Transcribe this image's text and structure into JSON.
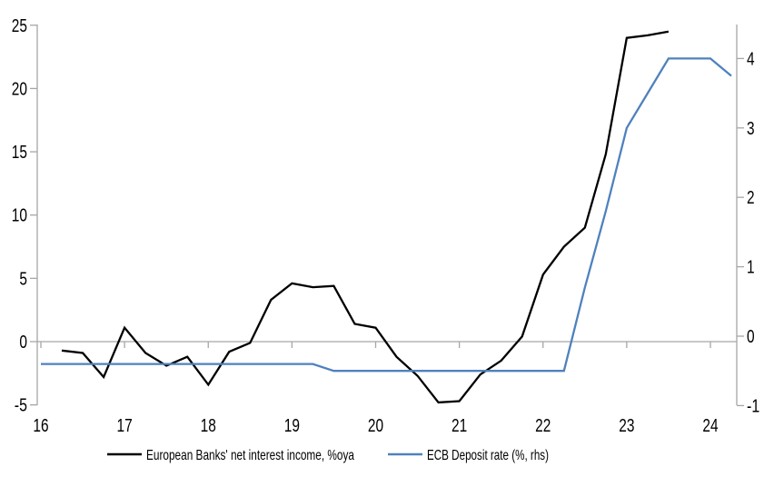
{
  "chart_data": {
    "type": "line",
    "title": "",
    "legend_position": "bottom",
    "grid": false,
    "x_axis": {
      "ticks": [
        16,
        17,
        18,
        19,
        20,
        21,
        22,
        23,
        24
      ],
      "labels": [
        "16",
        "17",
        "18",
        "19",
        "20",
        "21",
        "22",
        "23",
        "24"
      ],
      "range": [
        16,
        24.32
      ]
    },
    "left_axis": {
      "ticks": [
        -5,
        0,
        5,
        10,
        15,
        20,
        25
      ],
      "labels": [
        "-5",
        "0",
        "5",
        "10",
        "15",
        "20",
        "25"
      ],
      "range": [
        -5,
        25
      ],
      "zero_line": true
    },
    "right_axis": {
      "ticks": [
        -1,
        0,
        1,
        2,
        3,
        4
      ],
      "labels": [
        "-1",
        "0",
        "1",
        "2",
        "3",
        "4"
      ],
      "range": [
        -1,
        4.48
      ]
    },
    "series": [
      {
        "name": "European Banks' net interest income, %oya",
        "axis": "left",
        "color": "#000000",
        "x": [
          16.25,
          16.5,
          16.75,
          17.0,
          17.25,
          17.5,
          17.75,
          18.0,
          18.25,
          18.5,
          18.75,
          19.0,
          19.25,
          19.5,
          19.75,
          20.0,
          20.25,
          20.5,
          20.75,
          21.0,
          21.25,
          21.5,
          21.75,
          22.0,
          22.25,
          22.5,
          22.75,
          23.0,
          23.25,
          23.5
        ],
        "values": [
          -0.7,
          -0.9,
          -2.8,
          1.1,
          -0.9,
          -1.9,
          -1.2,
          -3.4,
          -0.8,
          -0.1,
          3.3,
          4.6,
          4.3,
          4.4,
          1.4,
          1.1,
          -1.2,
          -2.7,
          -4.8,
          -4.7,
          -2.6,
          -1.5,
          0.4,
          5.3,
          7.5,
          9.0,
          14.8,
          24.0,
          24.2,
          24.5
        ]
      },
      {
        "name": "ECB Deposit rate (%, rhs)",
        "axis": "right",
        "color": "#4f81bd",
        "x": [
          16.0,
          16.25,
          16.5,
          16.75,
          17.0,
          17.25,
          17.5,
          17.75,
          18.0,
          18.25,
          18.5,
          18.75,
          19.0,
          19.25,
          19.5,
          19.75,
          20.0,
          20.25,
          20.5,
          20.75,
          21.0,
          21.25,
          21.5,
          21.75,
          22.0,
          22.25,
          22.5,
          22.75,
          23.0,
          23.25,
          23.5,
          23.75,
          24.0,
          24.25
        ],
        "values": [
          -0.4,
          -0.4,
          -0.4,
          -0.4,
          -0.4,
          -0.4,
          -0.4,
          -0.4,
          -0.4,
          -0.4,
          -0.4,
          -0.4,
          -0.4,
          -0.4,
          -0.5,
          -0.5,
          -0.5,
          -0.5,
          -0.5,
          -0.5,
          -0.5,
          -0.5,
          -0.5,
          -0.5,
          -0.5,
          -0.5,
          0.7,
          1.8,
          3.0,
          3.5,
          4.0,
          4.0,
          4.0,
          3.75
        ]
      }
    ]
  },
  "colors": {
    "axis": "#a6a6a6",
    "nii_line": "#000000",
    "deposit_line": "#4f81bd",
    "background": "#ffffff",
    "text": "#000000"
  }
}
